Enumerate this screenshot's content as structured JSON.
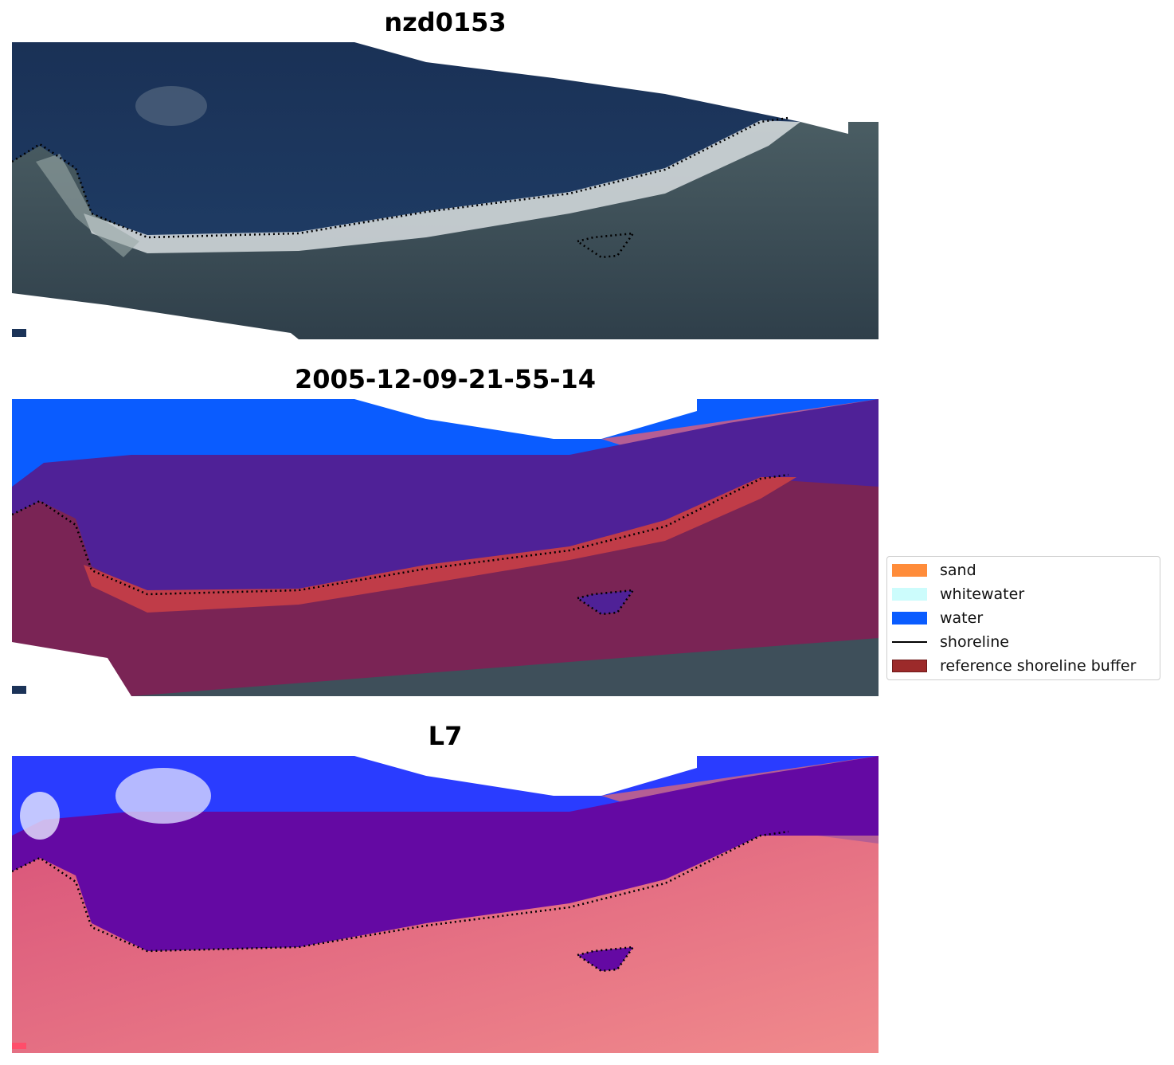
{
  "panels": [
    {
      "title": "nzd0153",
      "kind": "rgb"
    },
    {
      "title": "2005-12-09-21-55-14",
      "kind": "classified"
    },
    {
      "title": "L7",
      "kind": "index"
    }
  ],
  "legend": {
    "items": [
      {
        "label": "sand",
        "color": "#ff8c3a",
        "type": "patch"
      },
      {
        "label": "whitewater",
        "color": "#ccfcfc",
        "type": "patch"
      },
      {
        "label": "water",
        "color": "#0a5cff",
        "type": "patch"
      },
      {
        "label": "shoreline",
        "color": "#000000",
        "type": "line"
      },
      {
        "label": "reference shoreline buffer",
        "color": "#9c2a2a",
        "type": "patch"
      }
    ]
  },
  "colors": {
    "deep_water": "#1b3358",
    "surf": "#cfd8dc",
    "land": "#3e4f5a",
    "water_class": "#0a5cff",
    "buffer_class": "#7a2455",
    "nearshore_class": "#4f2197",
    "sand_band": "#c03c48",
    "index_water": "#2a3cff",
    "index_land": "#e5697a"
  }
}
